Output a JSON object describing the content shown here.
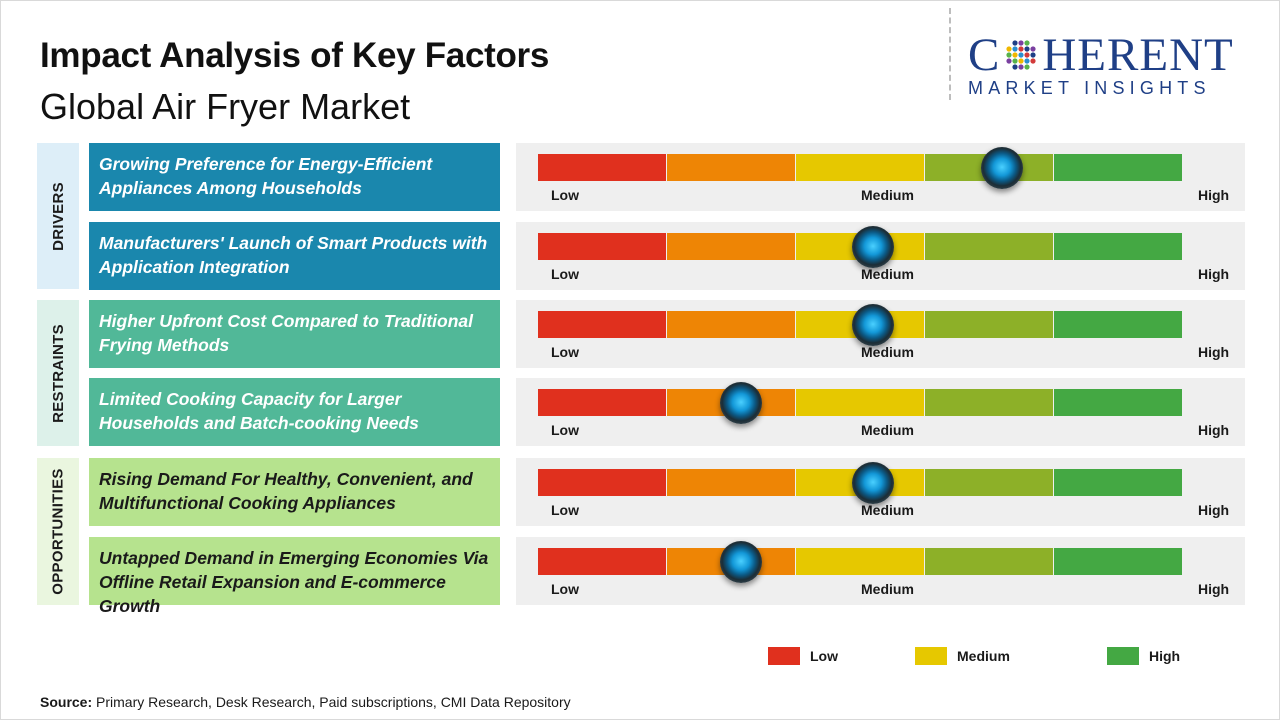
{
  "header": {
    "title": "Impact Analysis of Key Factors",
    "subtitle": "Global Air Fryer Market"
  },
  "logo": {
    "word_before": "C",
    "word_after": "HERENT",
    "sub": "MARKET INSIGHTS"
  },
  "chart_data": {
    "type": "impact-gauge",
    "scale": {
      "levels": [
        "Low",
        "Medium",
        "High"
      ],
      "segment_colors": [
        "#e0301e",
        "#ee8505",
        "#e6c800",
        "#8db028",
        "#44a843"
      ],
      "min": 0,
      "max": 5
    },
    "groups": [
      {
        "name": "DRIVERS",
        "label_bg": "#ddeef8",
        "box_color": "#1a87ad",
        "factors": [
          {
            "text": "Growing Preference for Energy-Efficient Appliances Among Households",
            "impact": 3.6
          },
          {
            "text": "Manufacturers' Launch of Smart Products with Application Integration",
            "impact": 2.6
          }
        ]
      },
      {
        "name": "RESTRAINTS",
        "label_bg": "#ddf1ea",
        "box_color": "#51b898",
        "factors": [
          {
            "text": "Higher Upfront Cost Compared to Traditional Frying Methods",
            "impact": 2.6
          },
          {
            "text": "Limited Cooking Capacity for Larger Households and Batch-cooking Needs",
            "impact": 1.57
          }
        ]
      },
      {
        "name": "OPPORTUNITIES",
        "label_bg": "#eaf6df",
        "box_color": "#b6e38e",
        "factors": [
          {
            "text": "Rising Demand For Healthy, Convenient, and Multifunctional Cooking Appliances",
            "impact": 2.6
          },
          {
            "text": "Untapped Demand in Emerging Economies Via Offline Retail Expansion and E-commerce Growth",
            "impact": 1.57
          }
        ]
      }
    ],
    "legend": [
      {
        "label": "Low",
        "color": "#e0301e"
      },
      {
        "label": "Medium",
        "color": "#e6c800"
      },
      {
        "label": "High",
        "color": "#44a843"
      }
    ]
  },
  "footer": {
    "source_label": "Source:",
    "source_text": " Primary Research, Desk Research, Paid subscriptions, CMI Data Repository"
  }
}
